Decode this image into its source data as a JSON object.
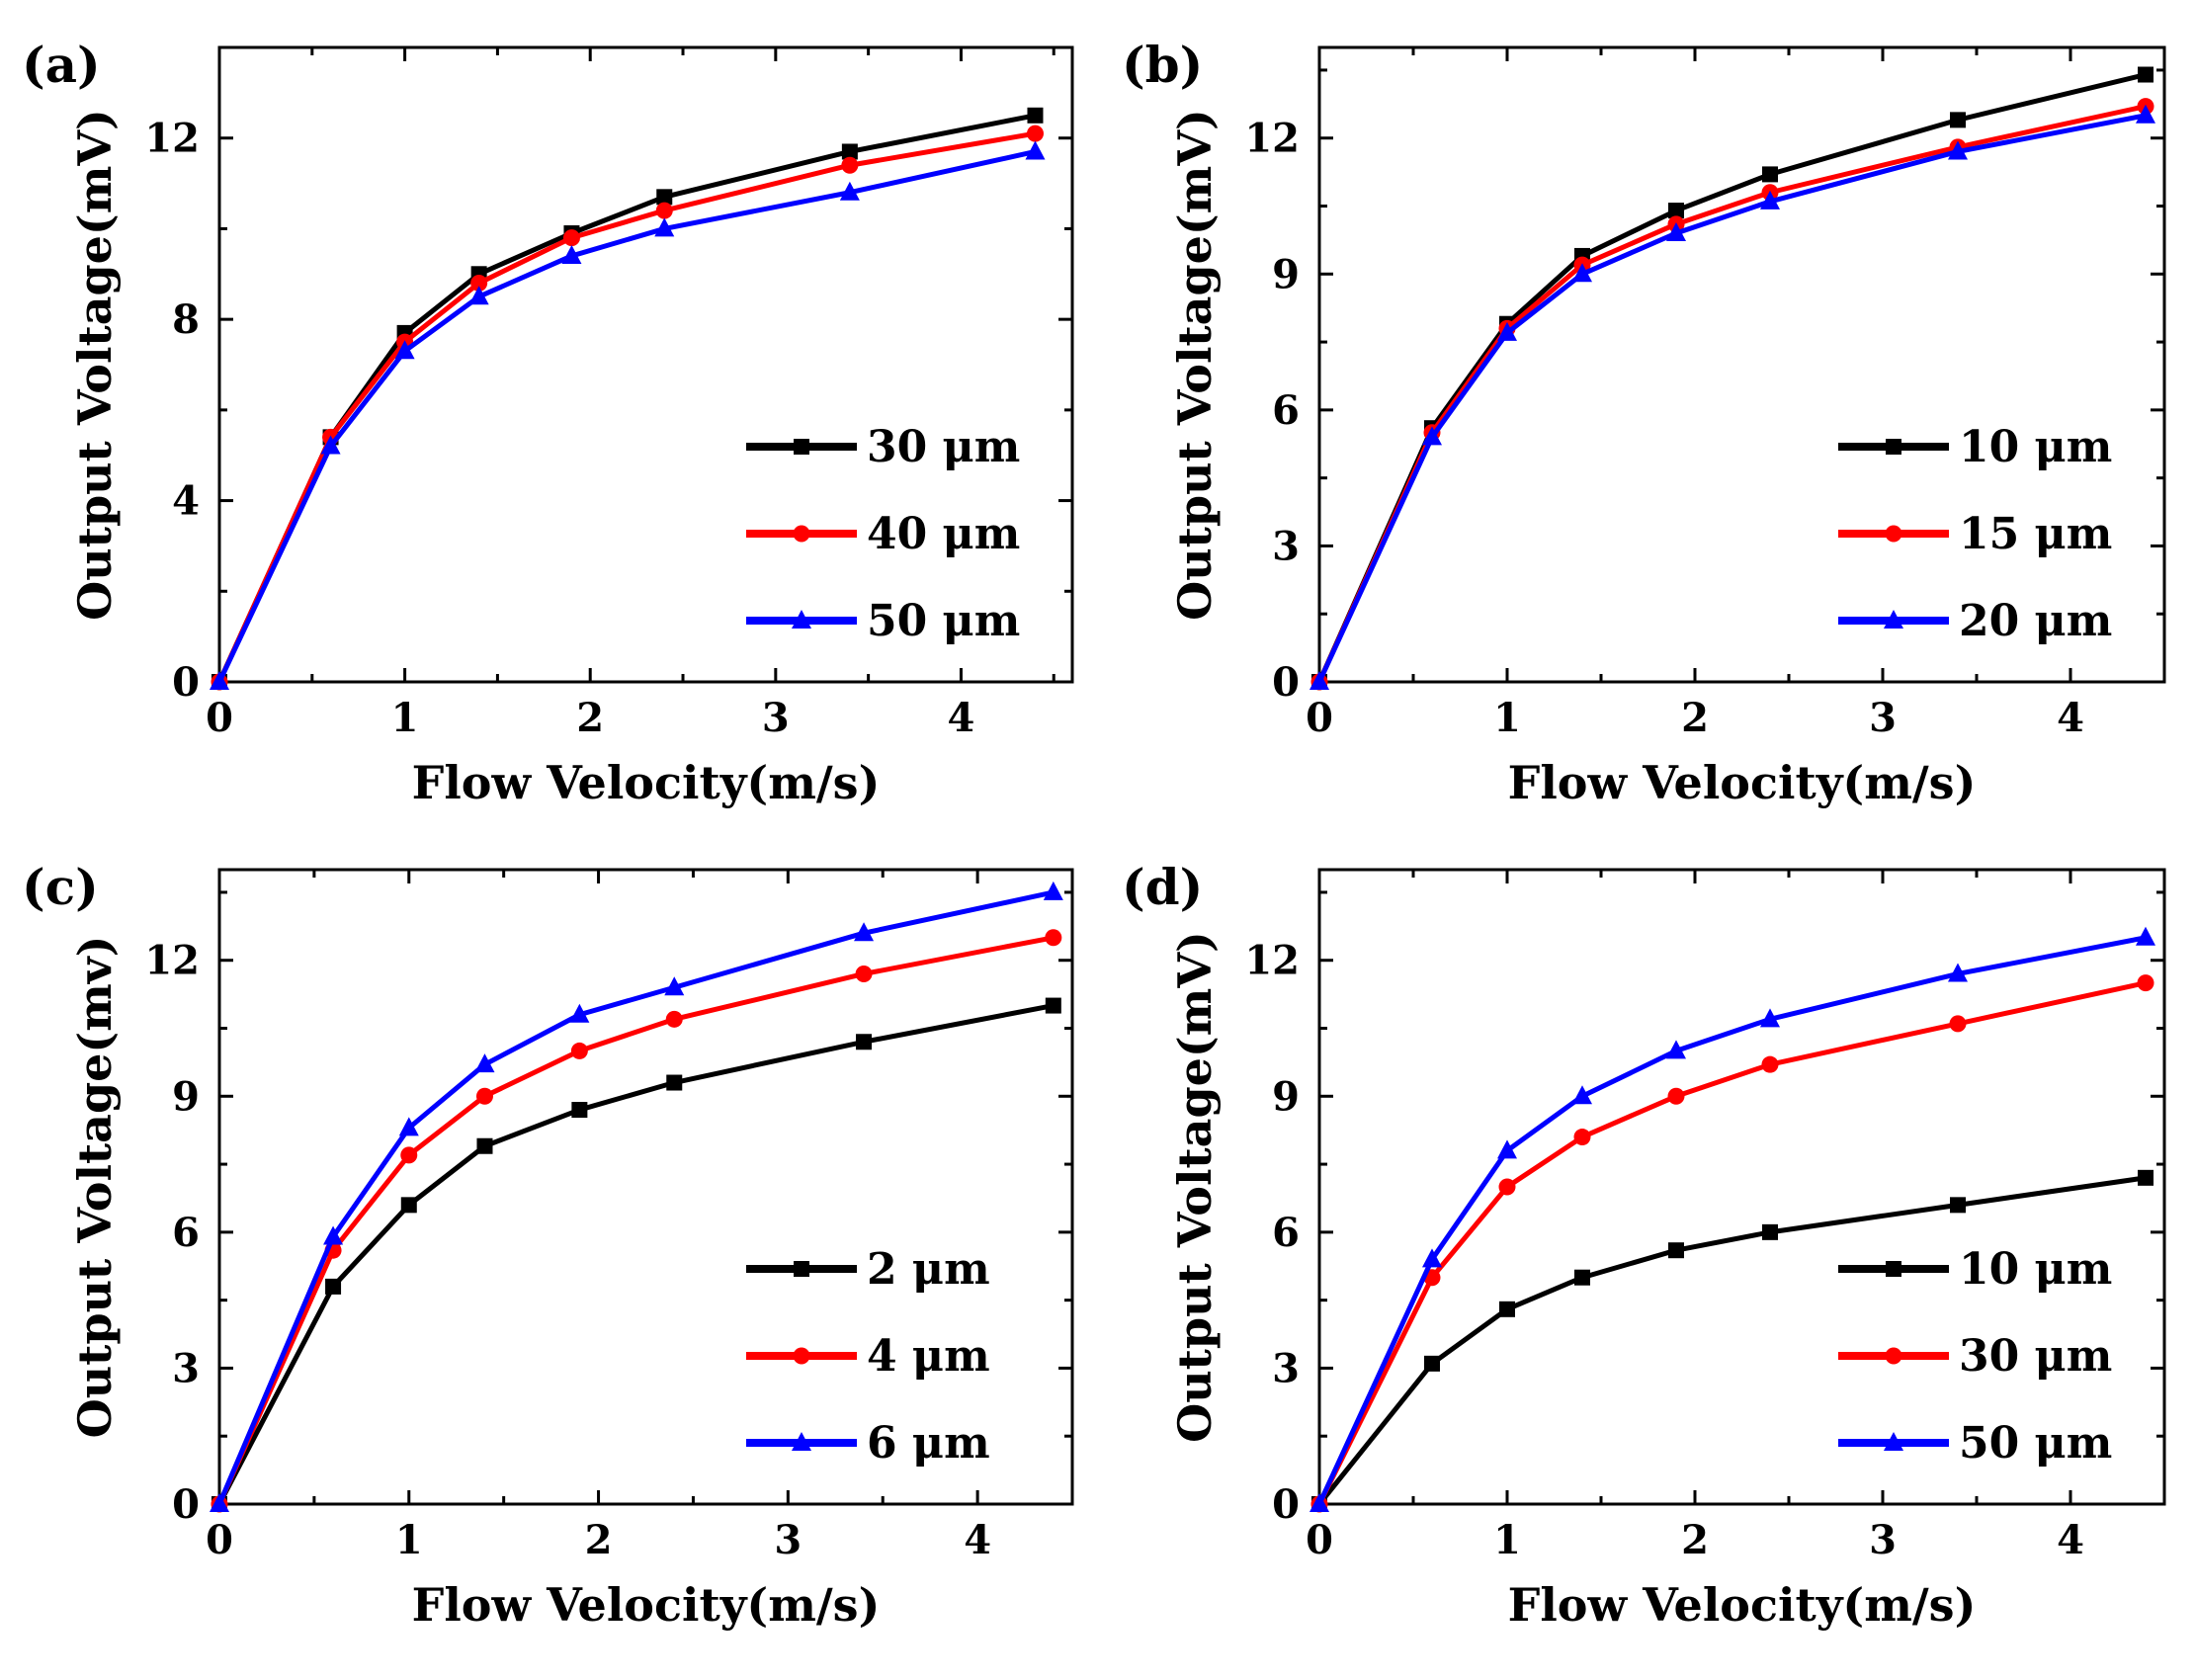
{
  "chart_data": [
    {
      "type": "line",
      "panel_label": "(a)",
      "xlabel": "Flow Velocity(m/s)",
      "ylabel": "Output Voltage(mV)",
      "xlim": [
        0,
        4.6
      ],
      "ylim": [
        0,
        14
      ],
      "xticks": [
        "0",
        "1",
        "2",
        "3",
        "4"
      ],
      "yticks": [
        "0",
        "4",
        "8",
        "12"
      ],
      "x": [
        0,
        0.6,
        1.0,
        1.4,
        1.9,
        2.4,
        3.4,
        4.4
      ],
      "legend_position": "lower-right",
      "series": [
        {
          "name": "30 μm",
          "color": "#000000",
          "marker": "square",
          "values": [
            0,
            5.4,
            7.7,
            9.0,
            9.9,
            10.7,
            11.7,
            12.5
          ]
        },
        {
          "name": "40 μm",
          "color": "#ff0000",
          "marker": "circle",
          "values": [
            0,
            5.4,
            7.5,
            8.8,
            9.8,
            10.4,
            11.4,
            12.1
          ]
        },
        {
          "name": "50 μm",
          "color": "#0000ff",
          "marker": "triangle",
          "values": [
            0,
            5.2,
            7.3,
            8.5,
            9.4,
            10.0,
            10.8,
            11.7
          ]
        }
      ]
    },
    {
      "type": "line",
      "panel_label": "(b)",
      "xlabel": "Flow Velocity(m/s)",
      "ylabel": "Output Voltage(mV)",
      "xlim": [
        0,
        4.5
      ],
      "ylim": [
        0,
        14
      ],
      "xticks": [
        "0",
        "1",
        "2",
        "3",
        "4"
      ],
      "yticks": [
        "0",
        "3",
        "6",
        "9",
        "12"
      ],
      "x": [
        0,
        0.6,
        1.0,
        1.4,
        1.9,
        2.4,
        3.4,
        4.4
      ],
      "legend_position": "lower-right",
      "series": [
        {
          "name": "10 μm",
          "color": "#000000",
          "marker": "square",
          "values": [
            0,
            5.6,
            7.9,
            9.4,
            10.4,
            11.2,
            12.4,
            13.4
          ]
        },
        {
          "name": "15 μm",
          "color": "#ff0000",
          "marker": "circle",
          "values": [
            0,
            5.5,
            7.8,
            9.2,
            10.1,
            10.8,
            11.8,
            12.7
          ]
        },
        {
          "name": "20 μm",
          "color": "#0000ff",
          "marker": "triangle",
          "values": [
            0,
            5.4,
            7.7,
            9.0,
            9.9,
            10.6,
            11.7,
            12.5
          ]
        }
      ]
    },
    {
      "type": "line",
      "panel_label": "(c)",
      "xlabel": "Flow Velocity(m/s)",
      "ylabel": "Output Voltage(mv)",
      "xlim": [
        0,
        4.5
      ],
      "ylim": [
        0,
        14
      ],
      "xticks": [
        "0",
        "1",
        "2",
        "3",
        "4"
      ],
      "yticks": [
        "0",
        "3",
        "6",
        "9",
        "12"
      ],
      "x": [
        0,
        0.6,
        1.0,
        1.4,
        1.9,
        2.4,
        3.4,
        4.4
      ],
      "legend_position": "lower-right",
      "series": [
        {
          "name": "2 μm",
          "color": "#000000",
          "marker": "square",
          "values": [
            0,
            4.8,
            6.6,
            7.9,
            8.7,
            9.3,
            10.2,
            11.0
          ]
        },
        {
          "name": "4 μm",
          "color": "#ff0000",
          "marker": "circle",
          "values": [
            0,
            5.6,
            7.7,
            9.0,
            10.0,
            10.7,
            11.7,
            12.5
          ]
        },
        {
          "name": "6 μm",
          "color": "#0000ff",
          "marker": "triangle",
          "values": [
            0,
            5.9,
            8.3,
            9.7,
            10.8,
            11.4,
            12.6,
            13.5
          ]
        }
      ]
    },
    {
      "type": "line",
      "panel_label": "(d)",
      "xlabel": "Flow Velocity(m/s)",
      "ylabel": "Output Voltage(mV)",
      "xlim": [
        0,
        4.5
      ],
      "ylim": [
        0,
        14
      ],
      "xticks": [
        "0",
        "1",
        "2",
        "3",
        "4"
      ],
      "yticks": [
        "0",
        "3",
        "6",
        "9",
        "12"
      ],
      "x": [
        0,
        0.6,
        1.0,
        1.4,
        1.9,
        2.4,
        3.4,
        4.4
      ],
      "legend_position": "lower-right",
      "series": [
        {
          "name": "10 μm",
          "color": "#000000",
          "marker": "square",
          "values": [
            0,
            3.1,
            4.3,
            5.0,
            5.6,
            6.0,
            6.6,
            7.2
          ]
        },
        {
          "name": "30 μm",
          "color": "#ff0000",
          "marker": "circle",
          "values": [
            0,
            5.0,
            7.0,
            8.1,
            9.0,
            9.7,
            10.6,
            11.5
          ]
        },
        {
          "name": "50 μm",
          "color": "#0000ff",
          "marker": "triangle",
          "values": [
            0,
            5.4,
            7.8,
            9.0,
            10.0,
            10.7,
            11.7,
            12.5
          ]
        }
      ]
    }
  ]
}
